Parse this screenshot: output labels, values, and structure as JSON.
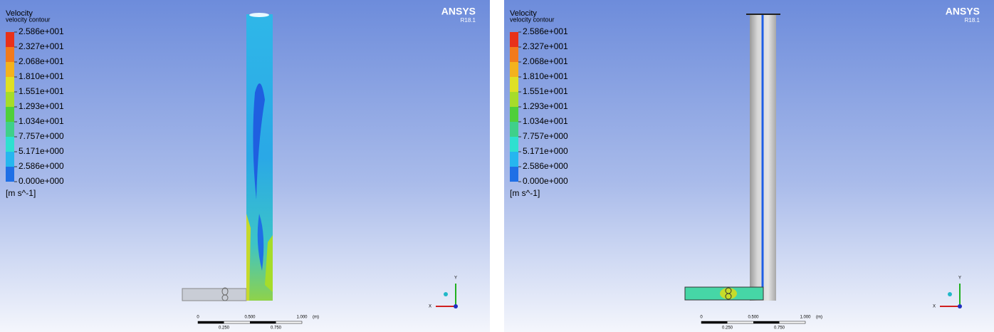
{
  "panels": [
    {
      "title": "Velocity",
      "subtitle": "velocity contour",
      "legend_labels": [
        "2.586e+001",
        "2.327e+001",
        "2.068e+001",
        "1.810e+001",
        "1.551e+001",
        "1.293e+001",
        "1.034e+001",
        "7.757e+000",
        "5.171e+000",
        "2.586e+000",
        "0.000e+000"
      ],
      "unit": "[m s^-1]",
      "logo": "ANSYS",
      "version": "R18.1",
      "scale_top": [
        "0",
        "0.500",
        "1.000",
        "(m)"
      ],
      "scale_bottom": [
        "0.250",
        "0.750"
      ],
      "axes": [
        "Y",
        "X"
      ]
    },
    {
      "title": "Velocity",
      "subtitle": "velocity contour",
      "legend_labels": [
        "2.586e+001",
        "2.327e+001",
        "2.068e+001",
        "1.810e+001",
        "1.551e+001",
        "1.293e+001",
        "1.034e+001",
        "7.757e+000",
        "5.171e+000",
        "2.586e+000",
        "0.000e+000"
      ],
      "unit": "[m s^-1]",
      "logo": "ANSYS",
      "version": "R18.1",
      "scale_top": [
        "0",
        "0.500",
        "1.000",
        "(m)"
      ],
      "scale_bottom": [
        "0.250",
        "0.750"
      ],
      "axes": [
        "Y",
        "X"
      ]
    }
  ]
}
